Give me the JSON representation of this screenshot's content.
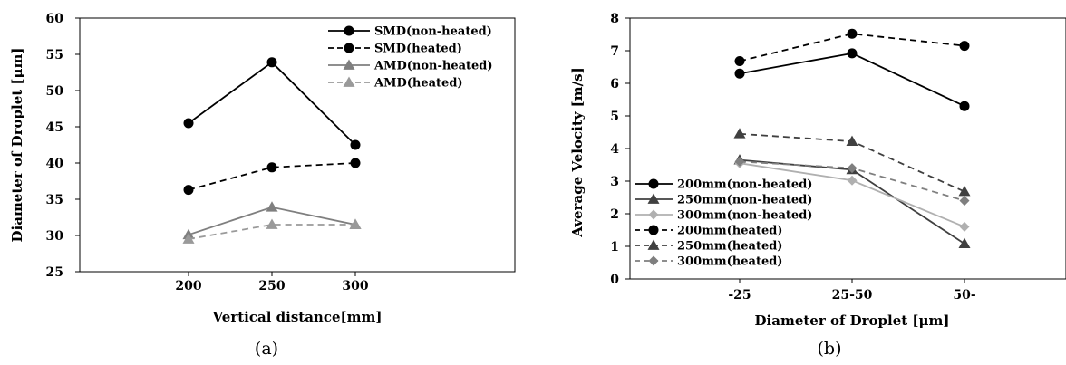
{
  "chart_data": [
    {
      "type": "line",
      "caption": "(a)",
      "xlabel": "Vertical distance[mm]",
      "ylabel": "Diameter of Droplet [μm]",
      "categories": [
        "200",
        "250",
        "300"
      ],
      "ylim": [
        25,
        60
      ],
      "yticks": [
        25,
        30,
        35,
        40,
        45,
        50,
        55,
        60
      ],
      "legend_position": "top-right",
      "series": [
        {
          "name": "SMD(non-heated)",
          "values": [
            45.5,
            53.9,
            42.5
          ],
          "color": "#000000",
          "dash": "solid",
          "marker": "circle"
        },
        {
          "name": "SMD(heated)",
          "values": [
            36.3,
            39.4,
            40.0
          ],
          "color": "#000000",
          "dash": "dashed",
          "marker": "circle"
        },
        {
          "name": "AMD(non-heated)",
          "values": [
            30.1,
            33.9,
            31.5
          ],
          "color": "#7f7f7f",
          "dash": "solid",
          "marker": "triangle"
        },
        {
          "name": "AMD(heated)",
          "values": [
            29.5,
            31.5,
            31.5
          ],
          "color": "#9a9a9a",
          "dash": "dashed",
          "marker": "triangle"
        }
      ]
    },
    {
      "type": "line",
      "caption": "(b)",
      "xlabel": "Diameter of Droplet [μm]",
      "ylabel": "Average Velocity  [m/s]",
      "categories": [
        "-25",
        "25-50",
        "50-"
      ],
      "ylim": [
        0,
        8
      ],
      "yticks": [
        0,
        1,
        2,
        3,
        4,
        5,
        6,
        7,
        8
      ],
      "legend_position": "bottom-left",
      "series": [
        {
          "name": "200mm(non-heated)",
          "values": [
            6.3,
            6.92,
            5.3
          ],
          "color": "#000000",
          "dash": "solid",
          "marker": "circle"
        },
        {
          "name": "250mm(non-heated)",
          "values": [
            3.65,
            3.35,
            1.08
          ],
          "color": "#404040",
          "dash": "solid",
          "marker": "triangle"
        },
        {
          "name": "300mm(non-heated)",
          "values": [
            3.55,
            3.02,
            1.6
          ],
          "color": "#b0b0b0",
          "dash": "solid",
          "marker": "diamond"
        },
        {
          "name": "200mm(heated)",
          "values": [
            6.68,
            7.52,
            7.15
          ],
          "color": "#000000",
          "dash": "dashed",
          "marker": "circle"
        },
        {
          "name": "250mm(heated)",
          "values": [
            4.45,
            4.22,
            2.68
          ],
          "color": "#404040",
          "dash": "dashed",
          "marker": "triangle"
        },
        {
          "name": "300mm(heated)",
          "values": [
            3.6,
            3.4,
            2.4
          ],
          "color": "#7f7f7f",
          "dash": "dashed",
          "marker": "diamond"
        }
      ]
    }
  ]
}
